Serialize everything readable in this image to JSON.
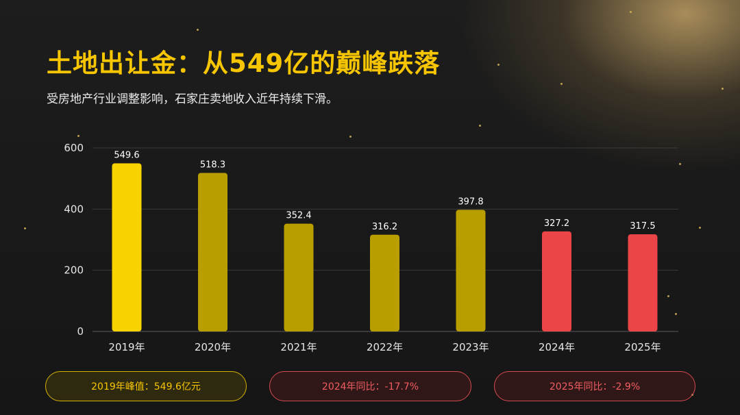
{
  "header": {
    "title": "土地出让金：从549亿的巅峰跌落",
    "subtitle": "受房地产行业调整影响，石家庄卖地收入近年持续下滑。"
  },
  "chart_data": {
    "type": "bar",
    "categories": [
      "2019年",
      "2020年",
      "2021年",
      "2022年",
      "2023年",
      "2024年",
      "2025年"
    ],
    "values": [
      549.6,
      518.3,
      352.4,
      316.2,
      397.8,
      327.2,
      317.5
    ],
    "data_labels": [
      "549.6",
      "518.3",
      "352.4",
      "316.2",
      "397.8",
      "327.2",
      "317.5"
    ],
    "bar_colors": [
      "#f8d300",
      "#b99e00",
      "#b99e00",
      "#b99e00",
      "#b99e00",
      "#ec4547",
      "#ec4547"
    ],
    "ylim": [
      0,
      600
    ],
    "yticks": [
      0,
      200,
      400,
      600
    ],
    "grid": true,
    "xlabel": "",
    "ylabel": ""
  },
  "callouts": {
    "peak": "2019年峰值：549.6亿元",
    "yoy_2024": "2024年同比：-17.7%",
    "yoy_2025": "2025年同比：-2.9%"
  },
  "colors": {
    "accent": "#f7c600",
    "decline": "#ec4547",
    "text": "#ededed"
  }
}
